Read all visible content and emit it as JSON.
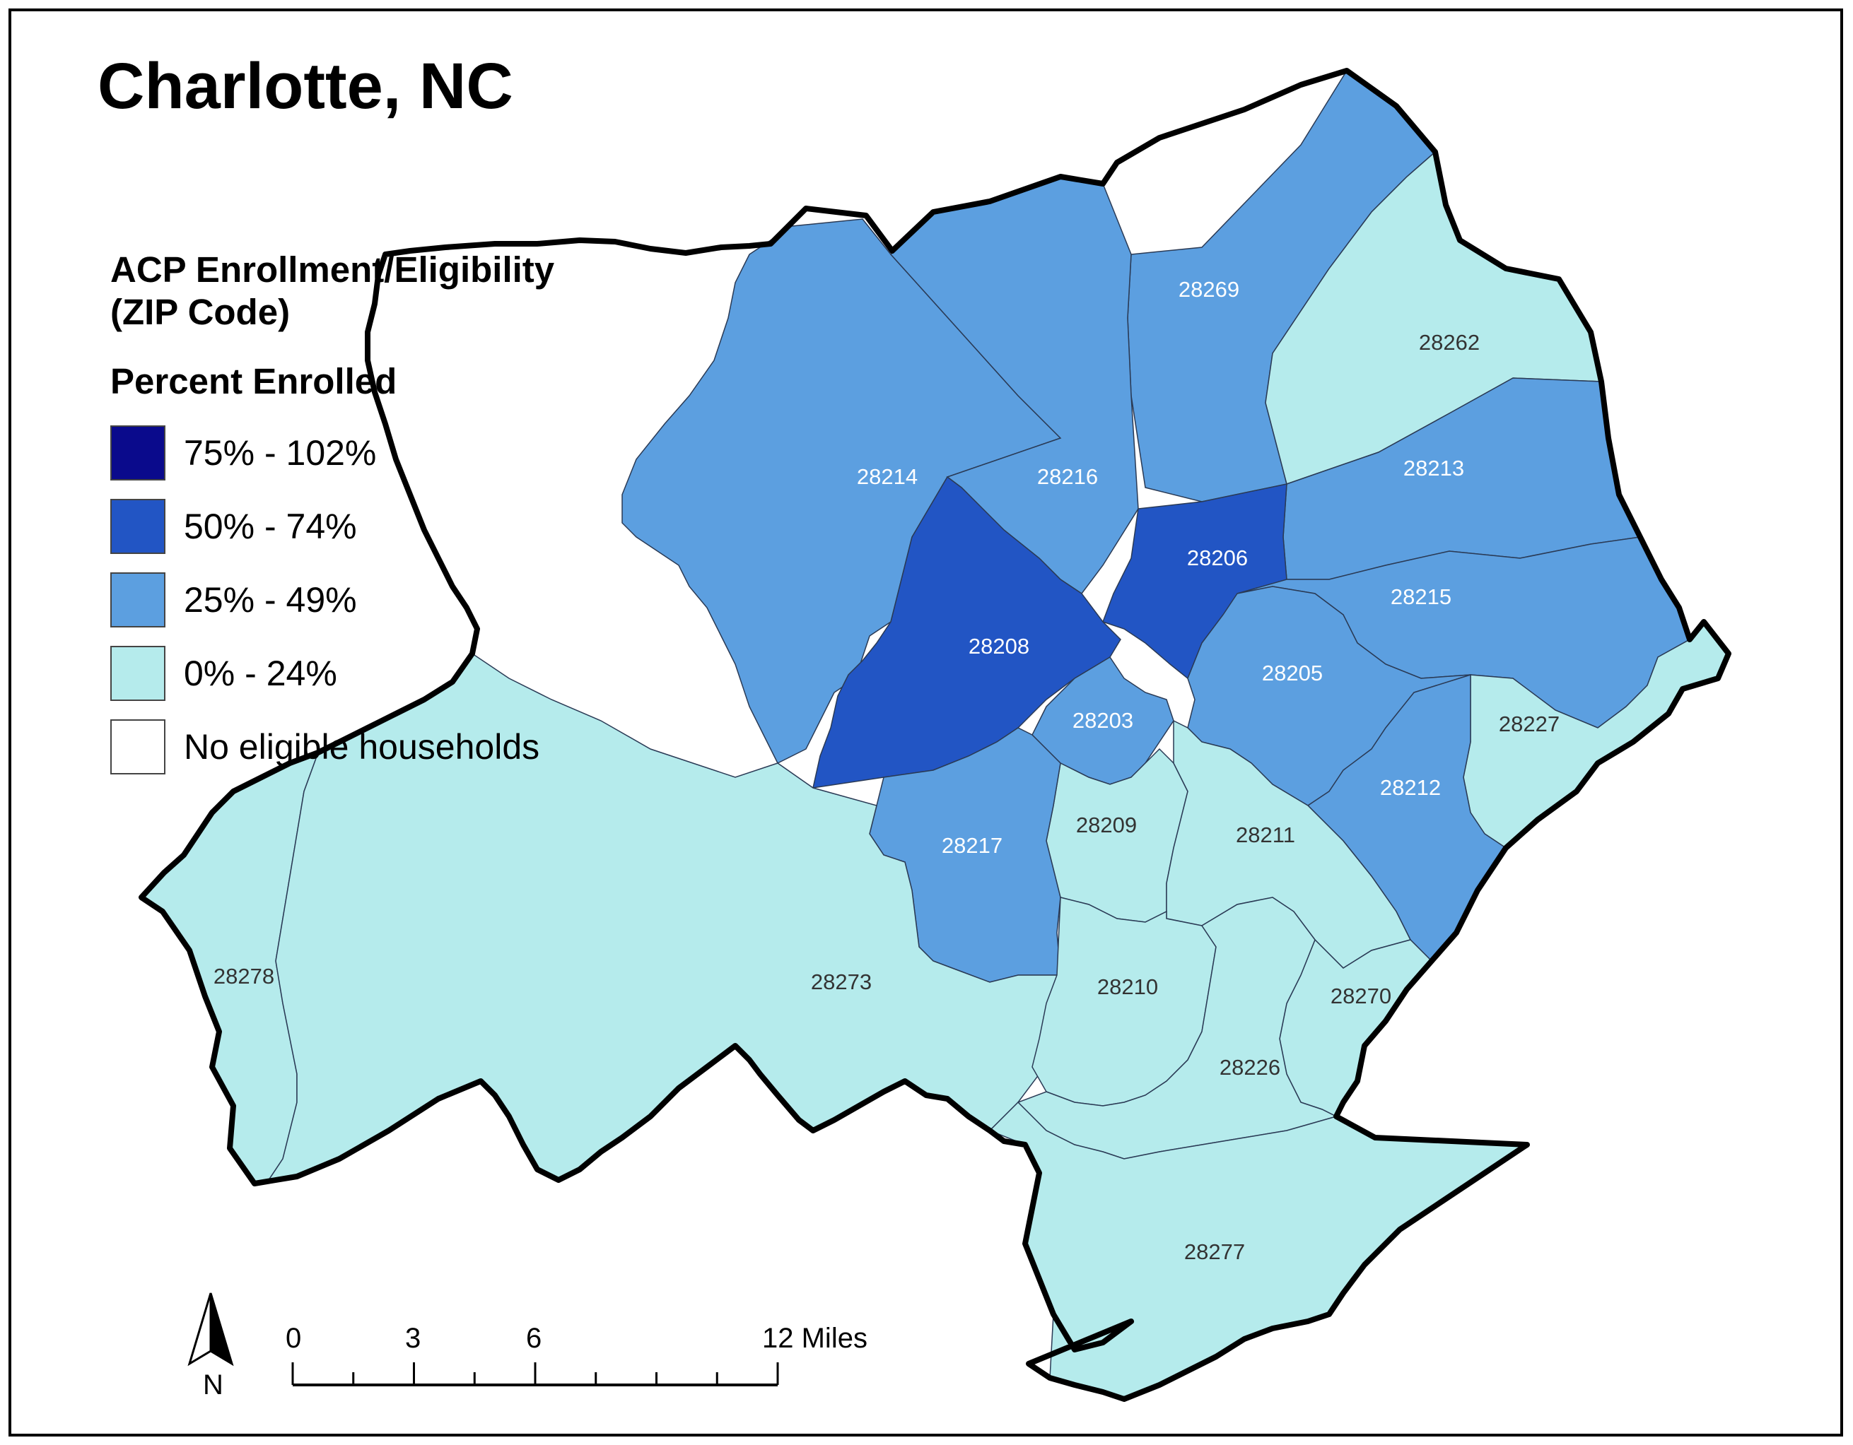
{
  "title": "Charlotte, NC",
  "legend": {
    "title_line1": "ACP Enrollment/Eligibility",
    "title_line2": "(ZIP Code)",
    "subtitle": "Percent Enrolled",
    "classes": [
      {
        "label": "75% - 102%",
        "color": "#0a0a8c"
      },
      {
        "label": "50% - 74%",
        "color": "#2255c4"
      },
      {
        "label": "25% - 49%",
        "color": "#5c9fe0"
      },
      {
        "label": "0% - 24%",
        "color": "#b5ebec"
      },
      {
        "label": "No eligible households",
        "color": "#ffffff"
      }
    ]
  },
  "scale_bar": {
    "labels": [
      "0",
      "3",
      "6",
      "12 Miles"
    ]
  },
  "north_arrow": {
    "label": "N"
  },
  "zip_codes": [
    {
      "zip": "28269",
      "class": "25% - 49%"
    },
    {
      "zip": "28262",
      "class": "0% - 24%"
    },
    {
      "zip": "28214",
      "class": "25% - 49%"
    },
    {
      "zip": "28216",
      "class": "25% - 49%"
    },
    {
      "zip": "28213",
      "class": "25% - 49%"
    },
    {
      "zip": "28206",
      "class": "50% - 74%"
    },
    {
      "zip": "28215",
      "class": "25% - 49%"
    },
    {
      "zip": "28208",
      "class": "50% - 74%"
    },
    {
      "zip": "28205",
      "class": "25% - 49%"
    },
    {
      "zip": "28203",
      "class": "25% - 49%"
    },
    {
      "zip": "28227",
      "class": "0% - 24%"
    },
    {
      "zip": "28212",
      "class": "25% - 49%"
    },
    {
      "zip": "28209",
      "class": "0% - 24%"
    },
    {
      "zip": "28211",
      "class": "0% - 24%"
    },
    {
      "zip": "28217",
      "class": "25% - 49%"
    },
    {
      "zip": "28278",
      "class": "0% - 24%"
    },
    {
      "zip": "28273",
      "class": "0% - 24%"
    },
    {
      "zip": "28210",
      "class": "0% - 24%"
    },
    {
      "zip": "28270",
      "class": "0% - 24%"
    },
    {
      "zip": "28226",
      "class": "0% - 24%"
    },
    {
      "zip": "28277",
      "class": "0% - 24%"
    }
  ]
}
